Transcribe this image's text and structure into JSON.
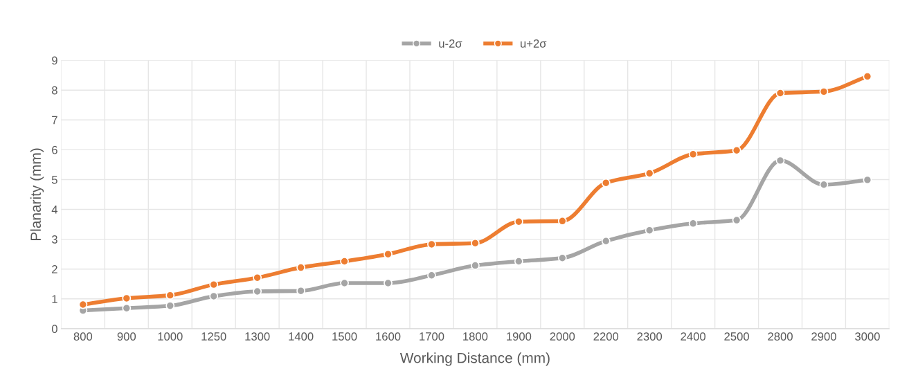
{
  "chart_data": {
    "type": "line",
    "categories": [
      "800",
      "900",
      "1000",
      "1250",
      "1300",
      "1400",
      "1500",
      "1600",
      "1700",
      "1800",
      "1900",
      "2000",
      "2200",
      "2300",
      "2400",
      "2500",
      "2800",
      "2900",
      "3000"
    ],
    "series": [
      {
        "name": "u-2σ",
        "color": "#a5a5a5",
        "values": [
          0.61,
          0.69,
          0.77,
          1.09,
          1.25,
          1.27,
          1.53,
          1.53,
          1.79,
          2.12,
          2.26,
          2.37,
          2.94,
          3.3,
          3.53,
          3.64,
          5.64,
          4.83,
          4.99
        ]
      },
      {
        "name": "u+2σ",
        "color": "#ed7d31",
        "values": [
          0.81,
          1.02,
          1.12,
          1.48,
          1.71,
          2.05,
          2.26,
          2.5,
          2.83,
          2.87,
          3.59,
          3.61,
          4.89,
          5.21,
          5.85,
          5.98,
          7.9,
          7.95,
          8.46
        ]
      }
    ],
    "xlabel": "Working Distance (mm)",
    "ylabel": "Planarity (mm)",
    "ylim": [
      0,
      9
    ],
    "yticks": [
      0,
      1,
      2,
      3,
      4,
      5,
      6,
      7,
      8,
      9
    ],
    "grid": true,
    "legend": "top",
    "marker": "circle",
    "line_style": "solid"
  }
}
